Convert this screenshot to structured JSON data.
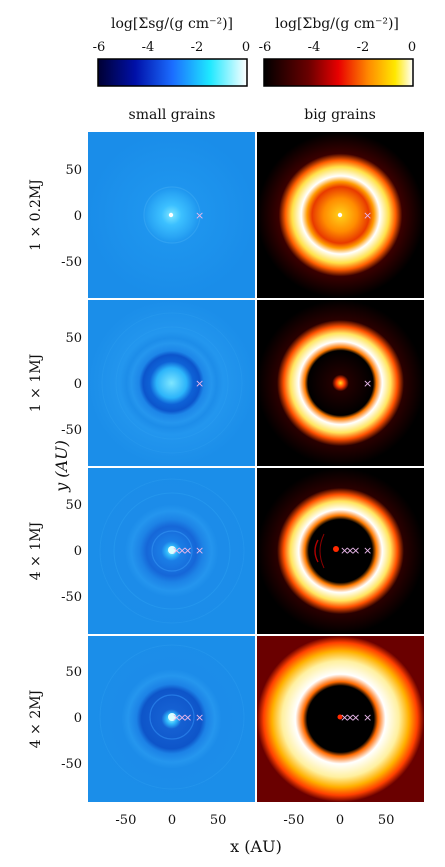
{
  "colorbars": {
    "small": {
      "label": "log[Σsg/(g cm⁻²)]",
      "ticks": [
        "-6",
        "-4",
        "-2",
        "0"
      ]
    },
    "big": {
      "label": "log[Σbg/(g cm⁻²)]",
      "ticks": [
        "-6",
        "-4",
        "-2",
        "0"
      ]
    }
  },
  "columns": {
    "small": "small grains",
    "big": "big grains"
  },
  "rows": [
    {
      "label": "1 × 0.2MJ",
      "planet_x": [
        30
      ]
    },
    {
      "label": "1 × 1MJ",
      "planet_x": [
        30
      ]
    },
    {
      "label": "4 × 1MJ",
      "planet_x": [
        5,
        11,
        17,
        30
      ]
    },
    {
      "label": "4 × 2MJ",
      "planet_x": [
        5,
        11,
        17,
        30
      ]
    }
  ],
  "axes": {
    "y_label": "y (AU)",
    "x_label": "x (AU)",
    "y_ticks": [
      "50",
      "0",
      "-50"
    ],
    "x_ticks": [
      "-50",
      "0",
      "50"
    ]
  },
  "colors": {
    "small_bg": "#1c8fec",
    "big_bg": "#000000",
    "marker": "#e9b7ea"
  },
  "chart_data": {
    "type": "heatmap",
    "panels": [
      {
        "row": "1 × 0.2MJ",
        "column": "small grains"
      },
      {
        "row": "1 × 0.2MJ",
        "column": "big grains"
      },
      {
        "row": "1 × 1MJ",
        "column": "small grains"
      },
      {
        "row": "1 × 1MJ",
        "column": "big grains"
      },
      {
        "row": "4 × 1MJ",
        "column": "small grains"
      },
      {
        "row": "4 × 1MJ",
        "column": "big grains"
      },
      {
        "row": "4 × 2MJ",
        "column": "small grains"
      },
      {
        "row": "4 × 2MJ",
        "column": "big grains"
      }
    ],
    "xlim": [
      -90,
      90
    ],
    "ylim": [
      -90,
      90
    ],
    "clim": [
      -6,
      0
    ]
  }
}
